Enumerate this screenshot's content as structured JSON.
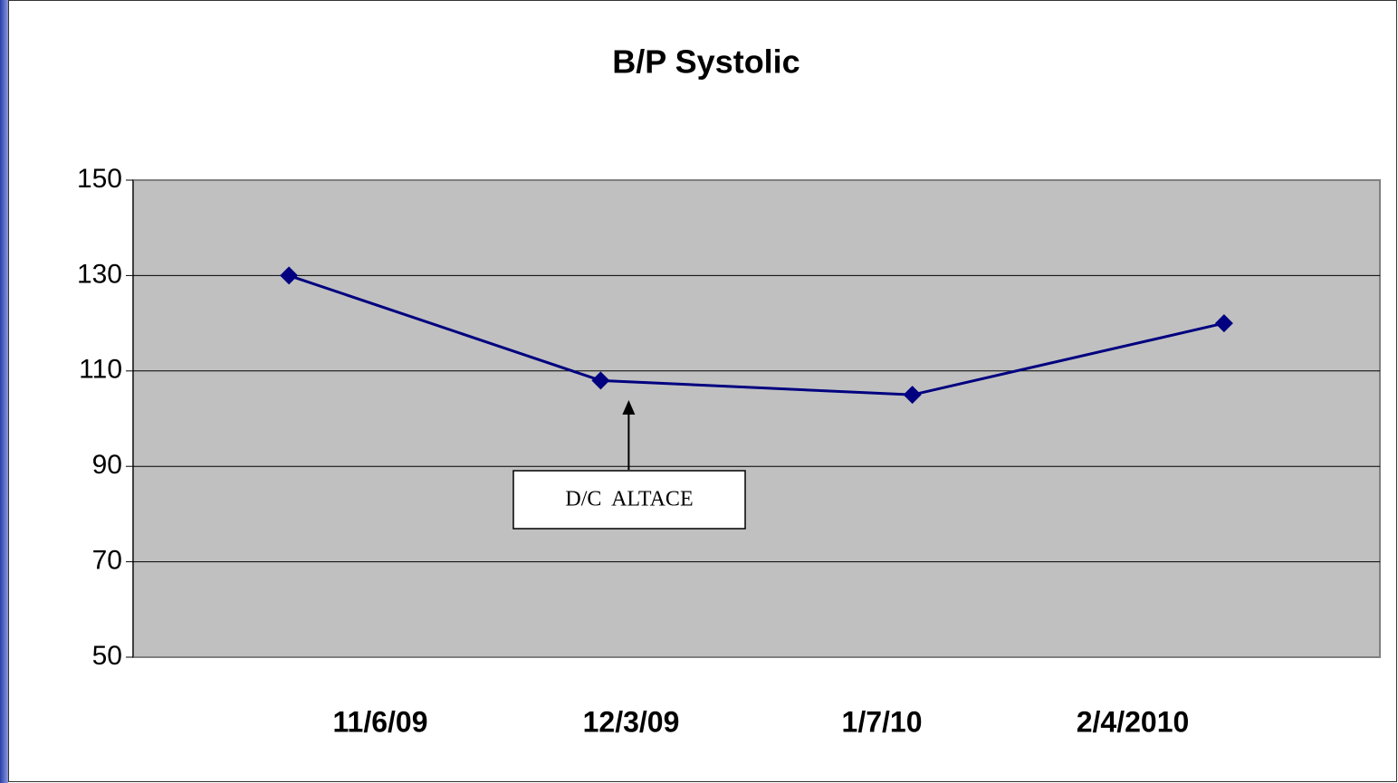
{
  "chart_data": {
    "type": "line",
    "title": "B/P Systolic",
    "categories": [
      "11/6/09",
      "12/3/09",
      "1/7/10",
      "2/4/2010"
    ],
    "series": [
      {
        "name": "B/P Systolic",
        "color": "#000080",
        "values": [
          130,
          108,
          105,
          120
        ]
      }
    ],
    "ylim": [
      50,
      150
    ],
    "yticks": [
      50,
      70,
      90,
      110,
      130,
      150
    ],
    "grid": true,
    "plot_background": "#c0c0c0",
    "annotation": {
      "text": "D/C  ALTACE",
      "category_index": 1
    }
  }
}
